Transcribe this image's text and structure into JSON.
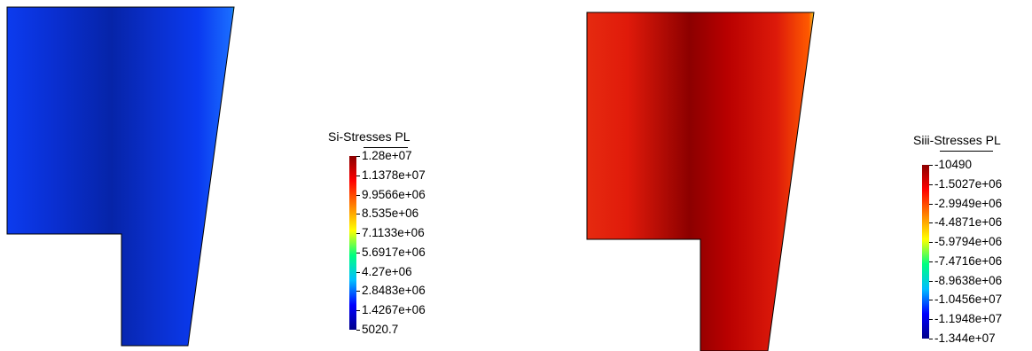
{
  "colors": {
    "scale": [
      "#00008b",
      "#0000ff",
      "#00bfff",
      "#00ff80",
      "#ffff00",
      "#ff8000",
      "#ff0000",
      "#8b0000"
    ],
    "left_field": [
      "#2bb36a",
      "#0c3cf0",
      "#0a30d4",
      "#0624a8",
      "#0a2ec8",
      "#0a3af0",
      "#1a6cff",
      "#11e88a"
    ],
    "right_field": [
      "#33cc66",
      "#e62c10",
      "#e01a0a",
      "#8c0000",
      "#b80000",
      "#dd1a0a",
      "#ff5a00",
      "#e8ff30"
    ]
  },
  "legends": [
    {
      "title": "Si-Stresses PL",
      "ticks": [
        "1.28e+07",
        "1.1378e+07",
        "9.9566e+06",
        "8.535e+06",
        "7.1133e+06",
        "5.6917e+06",
        "4.27e+06",
        "2.8483e+06",
        "1.4267e+06",
        "5020.7"
      ]
    },
    {
      "title": "Siii-Stresses PL",
      "ticks": [
        "-10490",
        "-1.5027e+06",
        "-2.9949e+06",
        "-4.4871e+06",
        "-5.9794e+06",
        "-7.4716e+06",
        "-8.9638e+06",
        "-1.0456e+07",
        "-1.1948e+07",
        "-1.344e+07"
      ]
    }
  ]
}
